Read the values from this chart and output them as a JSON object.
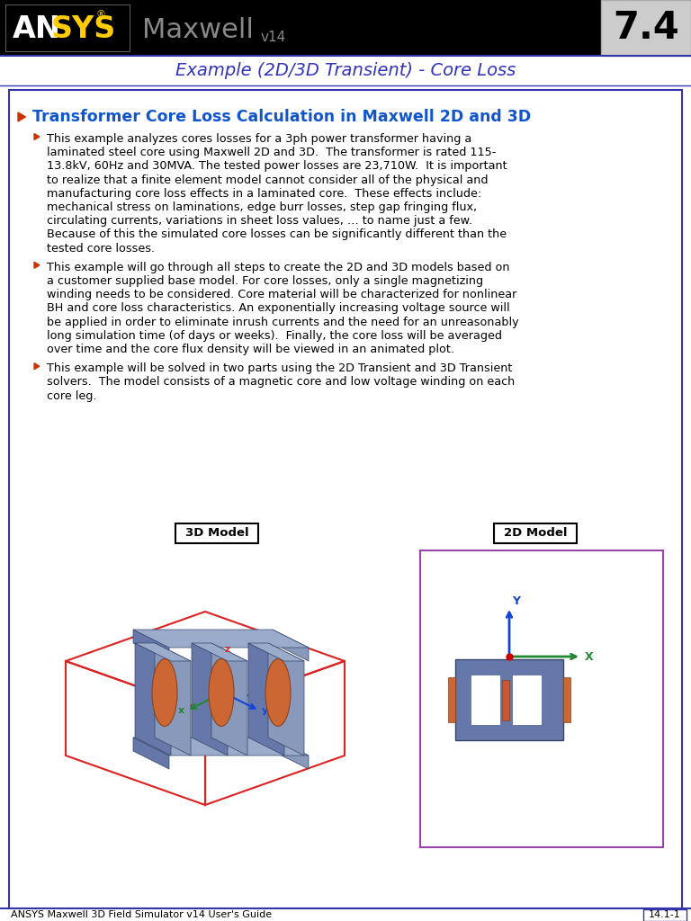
{
  "header_bg": "#000000",
  "ansys_white": "#ffffff",
  "ansys_yellow": "#ffcc00",
  "maxwell_gray": "#888888",
  "version_box_bg": "#cccccc",
  "version_number": "7.4",
  "subtitle": "Example (2D/3D Transient) - Core Loss",
  "subtitle_color": "#3333bb",
  "section_title": "Transformer Core Loss Calculation in Maxwell 2D and 3D",
  "section_title_color": "#1155cc",
  "bullet_color": "#cc3300",
  "body_text_color": "#000000",
  "background_color": "#ffffff",
  "border_color": "#3333aa",
  "footer_text": "ANSYS Maxwell 3D Field Simulator v14 User's Guide",
  "footer_page": "14.1-1",
  "footer_color": "#000000",
  "footer_bg": "#ffffff",
  "bullet1": "This example analyzes cores losses for a 3ph power transformer having a\nlaminated steel core using Maxwell 2D and 3D.  The transformer is rated 115-\n13.8kV, 60Hz and 30MVA. The tested power losses are 23,710W.  It is important\nto realize that a finite element model cannot consider all of the physical and\nmanufacturing core loss effects in a laminated core.  These effects include:\nmechanical stress on laminations, edge burr losses, step gap fringing flux,\ncirculating currents, variations in sheet loss values, … to name just a few.\nBecause of this the simulated core losses can be significantly different than the\ntested core losses.",
  "bullet2": "This example will go through all steps to create the 2D and 3D models based on\na customer supplied base model. For core losses, only a single magnetizing\nwinding needs to be considered. Core material will be characterized for nonlinear\nBH and core loss characteristics. An exponentially increasing voltage source will\nbe applied in order to eliminate inrush currents and the need for an unreasonably\nlong simulation time (of days or weeks).  Finally, the core loss will be averaged\nover time and the core flux density will be viewed in an animated plot.",
  "bullet3": "This example will be solved in two parts using the 2D Transient and 3D Transient\nsolvers.  The model consists of a magnetic core and low voltage winding on each\ncore leg.",
  "label_3d": "3D Model",
  "label_2d": "2D Model",
  "core_color": "#6677aa",
  "coil_color": "#cc6633",
  "box3d_border": "#000000",
  "box2d_border": "#9944aa",
  "red_wire": "#dd2222",
  "axis_z_color": "#dd2222",
  "axis_y_color": "#1144dd",
  "axis_x_color": "#228833"
}
